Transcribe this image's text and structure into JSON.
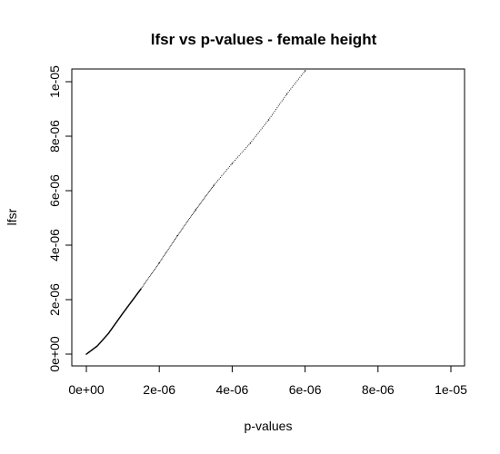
{
  "chart_data": {
    "type": "scatter",
    "title": "lfsr vs p-values - female height",
    "xlabel": "p-values",
    "ylabel": "lfsr",
    "xlim": [
      0,
      1e-05
    ],
    "ylim": [
      0,
      1e-05
    ],
    "grid": false,
    "x_ticks": [
      {
        "value": 0,
        "label": "0e+00"
      },
      {
        "value": 2e-06,
        "label": "2e-06"
      },
      {
        "value": 4e-06,
        "label": "4e-06"
      },
      {
        "value": 6e-06,
        "label": "6e-06"
      },
      {
        "value": 8e-06,
        "label": "8e-06"
      },
      {
        "value": 1e-05,
        "label": "1e-05"
      }
    ],
    "y_ticks": [
      {
        "value": 0,
        "label": "0e+00"
      },
      {
        "value": 2e-06,
        "label": "2e-06"
      },
      {
        "value": 4e-06,
        "label": "4e-06"
      },
      {
        "value": 6e-06,
        "label": "6e-06"
      },
      {
        "value": 8e-06,
        "label": "8e-06"
      },
      {
        "value": 1e-05,
        "label": "1e-05"
      }
    ],
    "series": [
      {
        "color": "#000000",
        "points": [
          {
            "x": 0.0,
            "y": 0.0
          },
          {
            "x": 3e-07,
            "y": 3e-07
          },
          {
            "x": 6e-07,
            "y": 7.5e-07
          },
          {
            "x": 1e-06,
            "y": 1.5e-06
          },
          {
            "x": 1.5e-06,
            "y": 2.4e-06
          },
          {
            "x": 2e-06,
            "y": 3.35e-06
          },
          {
            "x": 2.5e-06,
            "y": 4.35e-06
          },
          {
            "x": 3e-06,
            "y": 5.3e-06
          },
          {
            "x": 3.5e-06,
            "y": 6.2e-06
          },
          {
            "x": 4e-06,
            "y": 7e-06
          },
          {
            "x": 4.5e-06,
            "y": 7.75e-06
          },
          {
            "x": 5e-06,
            "y": 8.6e-06
          },
          {
            "x": 5.5e-06,
            "y": 9.55e-06
          },
          {
            "x": 6e-06,
            "y": 1.04e-05
          }
        ]
      }
    ]
  }
}
